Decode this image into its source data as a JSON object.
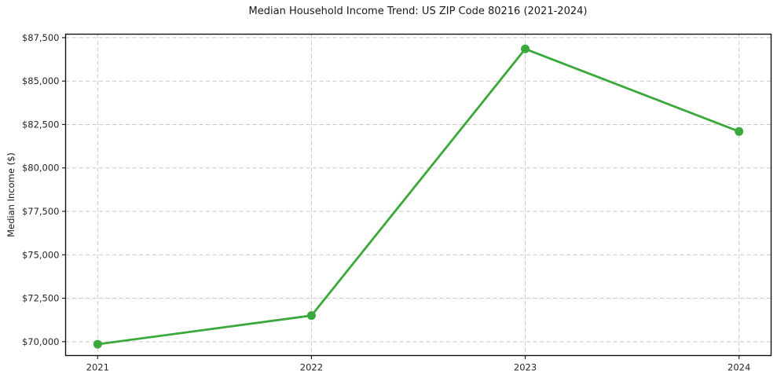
{
  "figure": {
    "background": "#ffffff"
  },
  "chart_data": {
    "type": "line",
    "title": "Median Household Income Trend: US ZIP Code 80216 (2021-2024)",
    "xlabel": "",
    "ylabel": "Median Income ($)",
    "x": [
      2021,
      2022,
      2023,
      2024
    ],
    "x_tick_labels": [
      "2021",
      "2022",
      "2023",
      "2024"
    ],
    "series": [
      {
        "name": "Median Household Income",
        "values": [
          69850,
          71500,
          86850,
          82100
        ],
        "color": "#3aa83a",
        "marker": "circle",
        "line_width": 2.8,
        "marker_radius": 5.5
      }
    ],
    "y_ticks": [
      70000,
      72500,
      75000,
      77500,
      80000,
      82500,
      85000,
      87500
    ],
    "y_tick_labels": [
      "$70,000",
      "$72,500",
      "$75,000",
      "$77,500",
      "$80,000",
      "$82,500",
      "$85,000",
      "$87,500"
    ],
    "xlim": [
      2020.85,
      2024.15
    ],
    "ylim": [
      69200,
      87700
    ],
    "grid": true,
    "grid_line_style": "dashed",
    "grid_color": "#c9c9c9",
    "axis_color": "#111111",
    "text_color": "#262626",
    "legend": "none"
  }
}
